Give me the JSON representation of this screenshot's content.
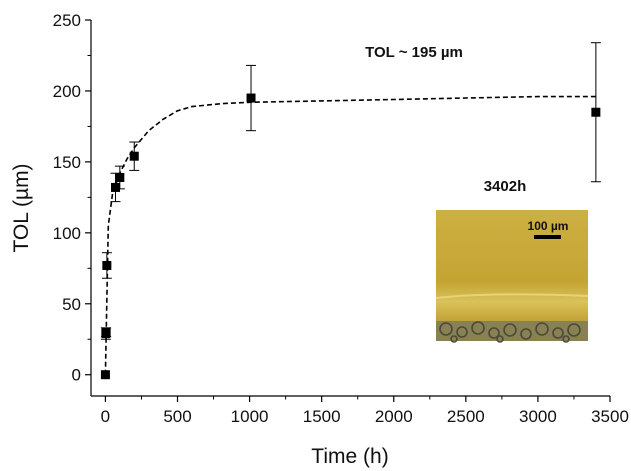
{
  "chart_data": {
    "type": "scatter",
    "xlabel": "Time (h)",
    "ylabel": "TOL (µm)",
    "xlim": [
      -100,
      3500
    ],
    "ylim": [
      -15,
      250
    ],
    "xticks": [
      0,
      500,
      1000,
      1500,
      2000,
      2500,
      3000,
      3500
    ],
    "yticks": [
      0,
      50,
      100,
      150,
      200,
      250
    ],
    "grid": false,
    "points": [
      {
        "x": 0,
        "y": 0,
        "err": 0
      },
      {
        "x": 3,
        "y": 29,
        "err": 4
      },
      {
        "x": 5,
        "y": 30,
        "err": 3
      },
      {
        "x": 10,
        "y": 77,
        "err": 9
      },
      {
        "x": 70,
        "y": 132,
        "err": 10
      },
      {
        "x": 100,
        "y": 139,
        "err": 8
      },
      {
        "x": 200,
        "y": 154,
        "err": 10
      },
      {
        "x": 1010,
        "y": 195,
        "err": 23
      },
      {
        "x": 3402,
        "y": 185,
        "err": 49
      }
    ],
    "fit": {
      "style": "dashed",
      "x": [
        0,
        20,
        50,
        100,
        150,
        200,
        300,
        400,
        500,
        600,
        800,
        1000,
        1500,
        2000,
        2500,
        3000,
        3402
      ],
      "y": [
        0,
        105,
        128,
        142,
        152,
        160,
        172,
        180,
        186,
        189,
        191,
        192,
        193,
        194,
        195,
        196,
        196
      ]
    },
    "annotations": {
      "tol_text": "TOL ~ 195 µm",
      "inset_time": "3402h",
      "scale_bar": "100 µm"
    }
  },
  "colors": {
    "marker": "#000000",
    "inset_bright": "#c9a93a",
    "inset_mid": "#b89530",
    "inset_band": "#d8bf55",
    "inset_dark": "#7a7448"
  }
}
